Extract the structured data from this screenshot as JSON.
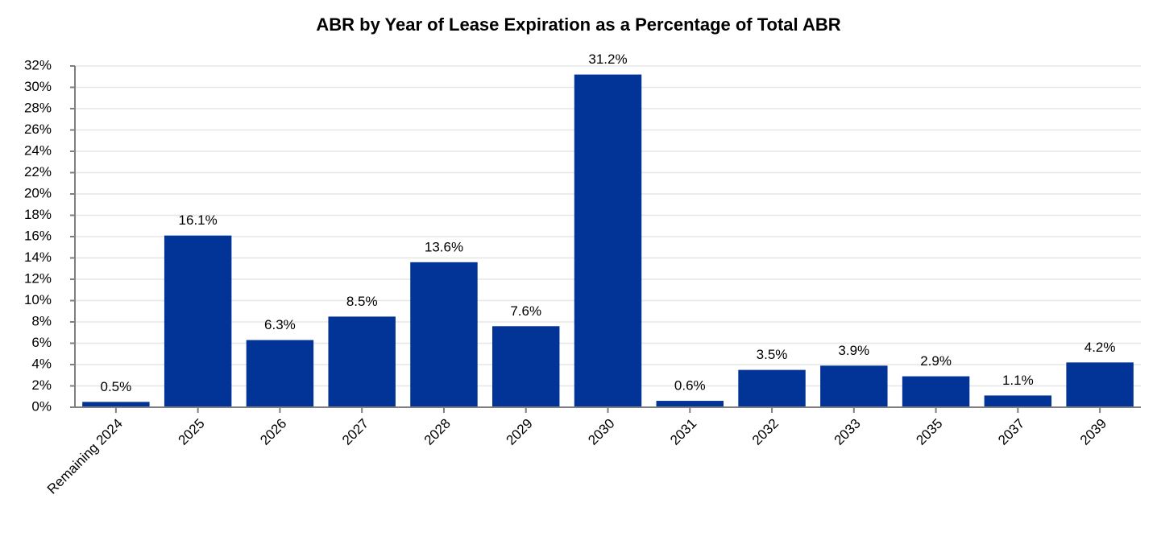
{
  "chart_data": {
    "type": "bar",
    "title": "ABR by Year of Lease Expiration as a Percentage of Total ABR",
    "categories": [
      "Remaining 2024",
      "2025",
      "2026",
      "2027",
      "2028",
      "2029",
      "2030",
      "2031",
      "2032",
      "2033",
      "2035",
      "2037",
      "2039"
    ],
    "values": [
      0.5,
      16.1,
      6.3,
      8.5,
      13.6,
      7.6,
      31.2,
      0.6,
      3.5,
      3.9,
      2.9,
      1.1,
      4.2
    ],
    "value_labels": [
      "0.5%",
      "16.1%",
      "6.3%",
      "8.5%",
      "13.6%",
      "7.6%",
      "31.2%",
      "0.6%",
      "3.5%",
      "3.9%",
      "2.9%",
      "1.1%",
      "4.2%"
    ],
    "color": "#023497",
    "ylim": [
      0,
      32
    ],
    "yticks": [
      {
        "value": 0,
        "label": "0%"
      },
      {
        "value": 2,
        "label": "2%"
      },
      {
        "value": 4,
        "label": "4%"
      },
      {
        "value": 6,
        "label": "6%"
      },
      {
        "value": 8,
        "label": "8%"
      },
      {
        "value": 10,
        "label": "10%"
      },
      {
        "value": 12,
        "label": "12%"
      },
      {
        "value": 14,
        "label": "14%"
      },
      {
        "value": 16,
        "label": "16%"
      },
      {
        "value": 18,
        "label": "18%"
      },
      {
        "value": 20,
        "label": "20%"
      },
      {
        "value": 22,
        "label": "22%"
      },
      {
        "value": 24,
        "label": "24%"
      },
      {
        "value": 26,
        "label": "26%"
      },
      {
        "value": 28,
        "label": "28%"
      },
      {
        "value": 30,
        "label": "30%"
      },
      {
        "value": 32,
        "label": "32%"
      }
    ],
    "grid": true
  }
}
